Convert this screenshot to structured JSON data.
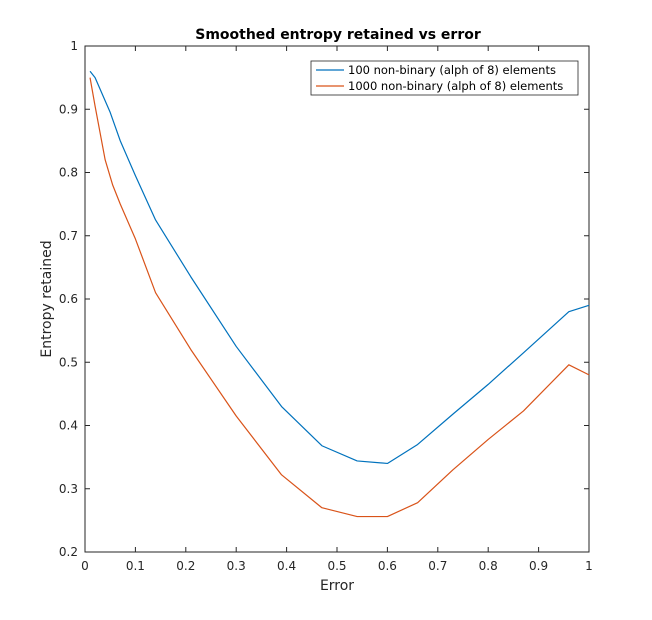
{
  "chart_data": {
    "type": "line",
    "title": "Smoothed entropy retained vs error",
    "xlabel": "Error",
    "ylabel": "Entropy retained",
    "xlim": [
      0,
      1
    ],
    "ylim": [
      0.2,
      1
    ],
    "xticks": [
      "0",
      "0.1",
      "0.2",
      "0.3",
      "0.4",
      "0.5",
      "0.6",
      "0.7",
      "0.8",
      "0.9",
      "1"
    ],
    "xtick_values": [
      0,
      0.1,
      0.2,
      0.3,
      0.4,
      0.5,
      0.6,
      0.7,
      0.8,
      0.9,
      1
    ],
    "yticks": [
      "0.2",
      "0.3",
      "0.4",
      "0.5",
      "0.6",
      "0.7",
      "0.8",
      "0.9",
      "1"
    ],
    "ytick_values": [
      0.2,
      0.3,
      0.4,
      0.5,
      0.6,
      0.7,
      0.8,
      0.9,
      1
    ],
    "grid": false,
    "legend_position": "top-right",
    "series": [
      {
        "name": "100 non-binary (alph of 8) elements",
        "color": "#0072BD",
        "x": [
          0.01,
          0.02,
          0.05,
          0.07,
          0.1,
          0.14,
          0.21,
          0.3,
          0.39,
          0.47,
          0.54,
          0.6,
          0.66,
          0.73,
          0.8,
          0.87,
          0.96,
          1.0
        ],
        "y": [
          0.96,
          0.95,
          0.895,
          0.85,
          0.795,
          0.725,
          0.635,
          0.525,
          0.43,
          0.368,
          0.344,
          0.34,
          0.37,
          0.418,
          0.465,
          0.515,
          0.58,
          0.59
        ]
      },
      {
        "name": "1000 non-binary (alph of 8) elements",
        "color": "#D95319",
        "x": [
          0.01,
          0.02,
          0.04,
          0.055,
          0.07,
          0.1,
          0.14,
          0.21,
          0.3,
          0.39,
          0.47,
          0.54,
          0.6,
          0.66,
          0.73,
          0.8,
          0.87,
          0.96,
          1.0
        ],
        "y": [
          0.95,
          0.905,
          0.82,
          0.78,
          0.75,
          0.695,
          0.61,
          0.52,
          0.415,
          0.322,
          0.27,
          0.256,
          0.256,
          0.278,
          0.33,
          0.378,
          0.423,
          0.496,
          0.48
        ]
      }
    ]
  }
}
